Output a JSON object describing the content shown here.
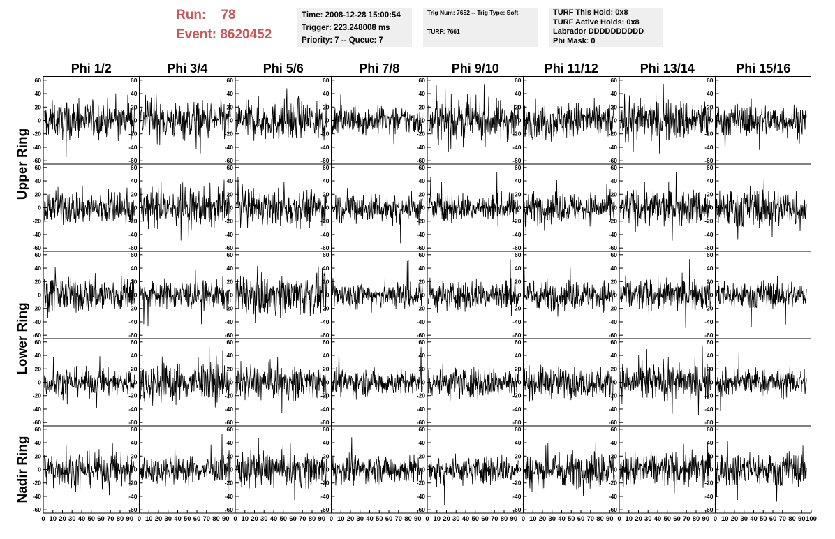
{
  "header": {
    "run_label": "Run:",
    "run_value": "78",
    "event_label": "Event:",
    "event_value": "8620452",
    "time_line": "Time: 2008-12-28 15:00:54",
    "trigger_line": "Trigger: 223.248008 ms",
    "priority_line": "Priority: 7 -- Queue: 7",
    "trig_line": "Trig Num: 7652 -- Trig Type: Soft",
    "turf_line": "TURF: 7661",
    "hold_line": "TURF This Hold: 0x8",
    "active_holds_line": "TURF Active Holds: 0x8",
    "labrador_line": "Labrador DDDDDDDDDD",
    "phi_mask_line": "Phi Mask: 0"
  },
  "colors": {
    "run_text": "#cc5555",
    "panel_bg": "#efefef",
    "trace": "#000000"
  },
  "chart_data": {
    "type": "line",
    "columns": [
      "Phi 1/2",
      "Phi 3/4",
      "Phi 5/6",
      "Phi 7/8",
      "Phi 9/10",
      "Phi 11/12",
      "Phi 13/14",
      "Phi 15/16"
    ],
    "ring_labels": [
      {
        "text": "Upper Ring",
        "rows": [
          0,
          1
        ]
      },
      {
        "text": "Lower Ring",
        "rows": [
          2,
          3
        ]
      },
      {
        "text": "Nadir Ring",
        "rows": [
          4
        ]
      }
    ],
    "rows": 5,
    "xlim": [
      0,
      100
    ],
    "ylim": [
      -65,
      65
    ],
    "x_ticks": [
      0,
      10,
      20,
      30,
      40,
      50,
      60,
      70,
      80,
      90
    ],
    "x_tick_labels_last": [
      0,
      10,
      20,
      30,
      40,
      50,
      60,
      70,
      80,
      90,
      100
    ],
    "y_ticks": [
      -60,
      -40,
      -20,
      0,
      20,
      40,
      60
    ],
    "samples_per_trace": 256,
    "typical_amplitude": 12,
    "peak_amplitude": 55
  }
}
